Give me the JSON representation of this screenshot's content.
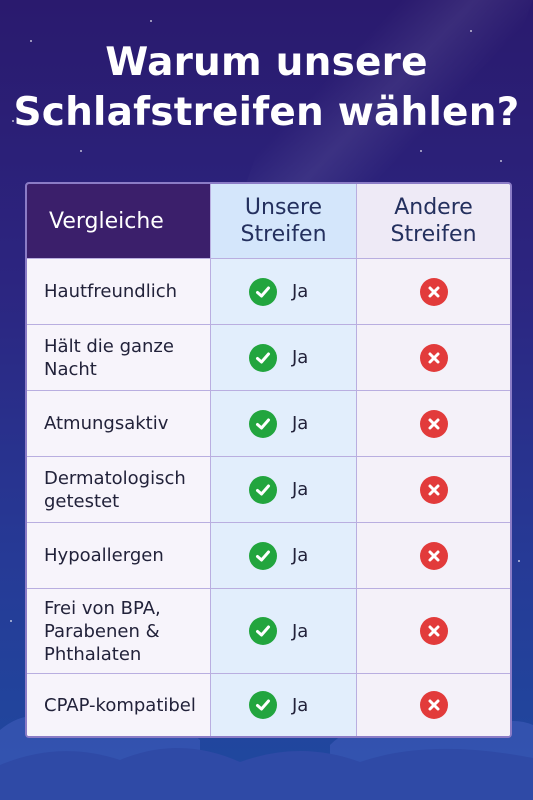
{
  "title_lines": [
    "Warum unsere",
    "Schlafstreifen wählen?"
  ],
  "table": {
    "headers": {
      "feature": "Vergleiche",
      "ours": [
        "Unsere",
        "Streifen"
      ],
      "other": [
        "Andere",
        "Streifen"
      ]
    },
    "yes_label": "Ja",
    "rows": [
      {
        "feature": [
          "Hautfreundlich"
        ],
        "ours": true,
        "other": false
      },
      {
        "feature": [
          "Hält die ganze",
          "Nacht"
        ],
        "ours": true,
        "other": false
      },
      {
        "feature": [
          "Atmungsaktiv"
        ],
        "ours": true,
        "other": false
      },
      {
        "feature": [
          "Dermatologisch",
          "getestet"
        ],
        "ours": true,
        "other": false
      },
      {
        "feature": [
          "Hypoallergen"
        ],
        "ours": true,
        "other": false
      },
      {
        "feature": [
          "Frei von BPA,",
          "Parabenen &",
          "Phthalaten"
        ],
        "ours": true,
        "other": false
      },
      {
        "feature": [
          "CPAP-kompatibel"
        ],
        "ours": true,
        "other": false
      }
    ]
  },
  "icons": {
    "yes": "check-circle-icon",
    "no": "x-circle-icon"
  },
  "colors": {
    "header_dark": "#3b1f6b",
    "check_green": "#22a53e",
    "cross_red": "#e23b3b",
    "ours_column": "#e2eefc"
  }
}
